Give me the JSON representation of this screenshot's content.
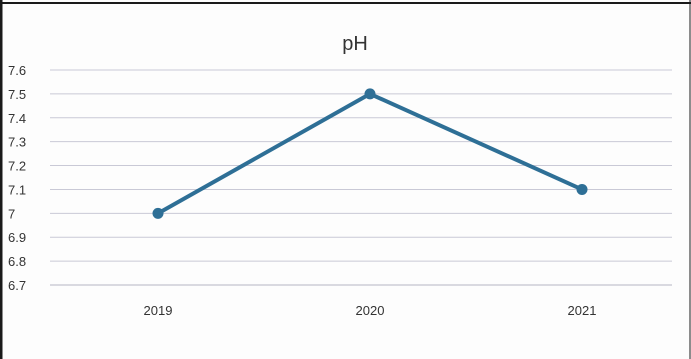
{
  "chart_data": {
    "type": "line",
    "title": "pH",
    "xlabel": "",
    "ylabel": "",
    "categories": [
      "2019",
      "2020",
      "2021"
    ],
    "series": [
      {
        "values": [
          7.0,
          7.5,
          7.1
        ],
        "color": "#2e6f96"
      }
    ],
    "y_ticks": [
      "6.7",
      "6.8",
      "6.9",
      "7",
      "7.1",
      "7.2",
      "7.3",
      "7.4",
      "7.5",
      "7.6"
    ],
    "ylim": [
      6.7,
      7.6
    ],
    "grid": true,
    "legend": "none",
    "colors": {
      "line": "#2e6f96",
      "grid": "#c9c9d6",
      "axis": "#b5b5c3",
      "frame": "#1a1a1a"
    }
  }
}
